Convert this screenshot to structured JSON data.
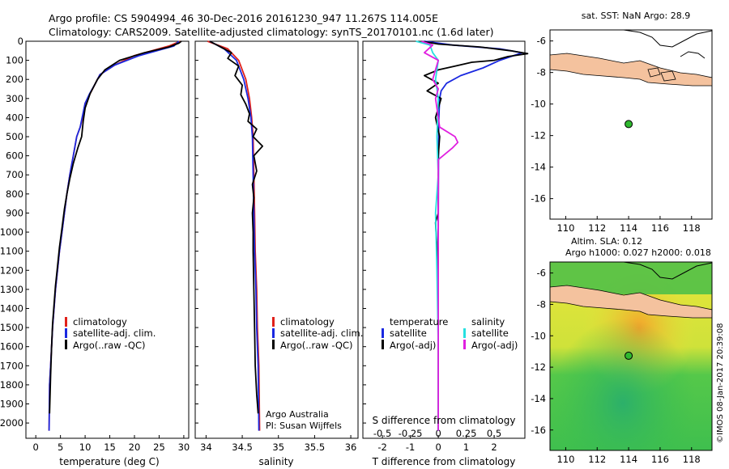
{
  "header": {
    "line1": "Argo profile: CS 5904994_46 30-Dec-2016 20161230_947 11.267S 114.005E",
    "line2": "Climatology: CARS2009. Satellite-adjusted climatology: synTS_20170101.nc (1.6d later)"
  },
  "colors": {
    "climatology": "#e0201a",
    "satellite": "#1a28e0",
    "argo": "#000000",
    "salinity_sat": "#27e0e0",
    "salinity_argo": "#e020e0",
    "land": "#f4c29e"
  },
  "depth_axis": {
    "ticks": [
      0,
      100,
      200,
      300,
      400,
      500,
      600,
      700,
      800,
      900,
      1000,
      1100,
      1200,
      1300,
      1400,
      1500,
      1600,
      1700,
      1800,
      1900,
      2000
    ],
    "range": [
      0,
      2080
    ]
  },
  "chart_data": [
    {
      "type": "line",
      "panel": "temperature",
      "xlabel": "temperature (deg C)",
      "ylabel": "",
      "xlim": [
        -2,
        31
      ],
      "ylim": [
        2080,
        0
      ],
      "xticks": [
        0,
        5,
        10,
        15,
        20,
        25,
        30
      ],
      "legend": [
        "climatology",
        "satellite-adj. clim.",
        "Argo(..raw -QC)"
      ],
      "series": [
        {
          "name": "climatology",
          "color": "#e0201a",
          "x": [
            29.3,
            27,
            20,
            16,
            13,
            12,
            11,
            10,
            9.5,
            9,
            8.3,
            7.6,
            6.9,
            6.3,
            5.8,
            5.3,
            4.8,
            4.4,
            4.0,
            3.7,
            3.4,
            3.2,
            3.0,
            2.8,
            2.7
          ],
          "y": [
            0,
            25,
            75,
            125,
            175,
            225,
            275,
            325,
            400,
            450,
            500,
            600,
            700,
            800,
            900,
            1000,
            1100,
            1200,
            1300,
            1400,
            1500,
            1600,
            1700,
            1800,
            2040
          ]
        },
        {
          "name": "satellite-adj. clim.",
          "color": "#1a28e0",
          "x": [
            29.0,
            28,
            21,
            16,
            13,
            12,
            10.9,
            10,
            9.4,
            9,
            8.3,
            7.6,
            6.9,
            6.3,
            5.8,
            5.3,
            4.8,
            4.4,
            4.0,
            3.7,
            3.4,
            3.2,
            3.0,
            2.8,
            2.7
          ],
          "y": [
            0,
            25,
            75,
            125,
            175,
            225,
            275,
            325,
            400,
            450,
            500,
            600,
            700,
            800,
            900,
            1000,
            1100,
            1200,
            1300,
            1400,
            1500,
            1600,
            1700,
            1800,
            2040
          ]
        },
        {
          "name": "Argo(..raw -QC)",
          "color": "#000000",
          "x": [
            29.5,
            29.0,
            27,
            22,
            17,
            14,
            12.5,
            11,
            10,
            9.6,
            9.3,
            8.5,
            7.6,
            6.9,
            6.3,
            5.8,
            5.3,
            4.8,
            4.4,
            4.0,
            3.7,
            3.4,
            3.2,
            3.0,
            2.8
          ],
          "y": [
            0,
            10,
            30,
            60,
            100,
            150,
            200,
            275,
            350,
            420,
            500,
            560,
            640,
            720,
            800,
            880,
            980,
            1080,
            1180,
            1280,
            1380,
            1480,
            1600,
            1750,
            1950
          ]
        }
      ]
    },
    {
      "type": "line",
      "panel": "salinity",
      "xlabel": "salinity",
      "ylabel": "",
      "xlim": [
        33.85,
        36.1
      ],
      "ylim": [
        2080,
        0
      ],
      "xticks": [
        34,
        34.5,
        35,
        35.5,
        36
      ],
      "legend": [
        "climatology",
        "satellite-adj. clim.",
        "Argo(..raw -QC)"
      ],
      "annotation": [
        "Argo Australia",
        "PI: Susan Wijffels"
      ],
      "series": [
        {
          "name": "climatology",
          "color": "#e0201a",
          "x": [
            34.02,
            34.3,
            34.45,
            34.55,
            34.6,
            34.63,
            34.65,
            34.66,
            34.67,
            34.68,
            34.7,
            34.71,
            34.73,
            34.74
          ],
          "y": [
            0,
            40,
            100,
            200,
            300,
            400,
            500,
            700,
            900,
            1100,
            1300,
            1500,
            1700,
            2040
          ]
        },
        {
          "name": "satellite-adj. clim.",
          "color": "#1a28e0",
          "x": [
            34.05,
            34.25,
            34.42,
            34.52,
            34.58,
            34.62,
            34.64,
            34.65,
            34.66,
            34.67,
            34.69,
            34.7,
            34.72,
            34.73
          ],
          "y": [
            0,
            40,
            100,
            200,
            300,
            400,
            500,
            700,
            900,
            1100,
            1300,
            1500,
            1700,
            2040
          ]
        },
        {
          "name": "Argo(..raw -QC)",
          "color": "#000000",
          "x": [
            34.05,
            34.2,
            34.35,
            34.3,
            34.45,
            34.4,
            34.5,
            34.48,
            34.55,
            34.6,
            34.58,
            34.7,
            34.65,
            34.78,
            34.66,
            34.7,
            34.64,
            34.66,
            34.64,
            34.65,
            34.65,
            34.66,
            34.67,
            34.68,
            34.7,
            34.72
          ],
          "y": [
            0,
            30,
            60,
            90,
            130,
            180,
            230,
            280,
            330,
            380,
            420,
            460,
            500,
            550,
            600,
            680,
            750,
            820,
            900,
            1000,
            1100,
            1300,
            1500,
            1700,
            1850,
            1950
          ]
        }
      ]
    },
    {
      "type": "line",
      "panel": "difference",
      "xlabel": "T difference from climatology",
      "xlabel_top": "S difference from climatology",
      "xlim": [
        -2.7,
        3.1
      ],
      "ylim": [
        2080,
        0
      ],
      "xticks": [
        -2,
        -1,
        0,
        1,
        2
      ],
      "xticks_top_labels": [
        "-0.5",
        "-0.25",
        "0",
        "0.25",
        "0.5"
      ],
      "xticks_top_values": [
        -2,
        -1,
        0,
        1,
        2
      ],
      "legend_temperature_title": "temperature",
      "legend_salinity_title": "salinity",
      "legend": [
        "satellite",
        "Argo(-adj)",
        "satellite",
        "Argo(-adj)"
      ],
      "series": [
        {
          "name": "T satellite",
          "color": "#1a28e0",
          "x": [
            -0.5,
            0.5,
            2.2,
            3.0,
            2.2,
            1.6,
            0.8,
            0.3,
            0.1,
            0.05,
            0.02,
            0.01,
            0.0,
            0.0,
            0.0
          ],
          "y": [
            0,
            20,
            40,
            60,
            100,
            140,
            180,
            220,
            260,
            300,
            400,
            600,
            1000,
            1500,
            2040
          ]
        },
        {
          "name": "T Argo(-adj)",
          "color": "#000000",
          "x": [
            -0.6,
            0.0,
            1.5,
            2.6,
            3.2,
            2.5,
            2.0,
            1.2,
            0.6,
            0.0,
            -0.5,
            0.0,
            -0.4,
            0.1,
            0.0,
            -0.1,
            0.05,
            0.0,
            0.0,
            0.0,
            -0.1,
            0.0,
            0.0
          ],
          "y": [
            0,
            15,
            30,
            50,
            65,
            80,
            100,
            110,
            130,
            150,
            180,
            220,
            260,
            300,
            350,
            400,
            500,
            600,
            800,
            900,
            950,
            1200,
            2040
          ]
        },
        {
          "name": "S satellite",
          "color": "#27e0e0",
          "x": [
            -0.8,
            -0.3,
            -0.2,
            0.0,
            -0.1,
            0.0,
            -0.05,
            0.0,
            -0.1,
            -0.05,
            0.0,
            0.0
          ],
          "y": [
            0,
            20,
            60,
            100,
            200,
            300,
            500,
            700,
            900,
            1200,
            1600,
            2040
          ]
        },
        {
          "name": "S Argo(-adj)",
          "color": "#e020e0",
          "x": [
            -0.6,
            -0.2,
            -0.5,
            0.0,
            -0.2,
            0.0,
            -0.1,
            0.0,
            0.05,
            0.6,
            0.7,
            0.5,
            0.0,
            0.0,
            0.0
          ],
          "y": [
            0,
            20,
            60,
            100,
            200,
            250,
            300,
            400,
            450,
            500,
            530,
            560,
            620,
            800,
            2040
          ]
        }
      ]
    }
  ],
  "map_sst": {
    "title": "sat. SST: NaN Argo: 28.9",
    "xticks": [
      "110",
      "112",
      "114",
      "116",
      "118"
    ],
    "yticks": [
      "-6",
      "-8",
      "-10",
      "-12",
      "-14",
      "-16"
    ],
    "xlim": [
      109,
      119.3
    ],
    "ylim": [
      -17.3,
      -5.3
    ],
    "argo_lon": 114.0,
    "argo_lat": -11.27,
    "argo_color": "#2fb82f"
  },
  "map_sla": {
    "title_line1": "Altim. SLA: 0.12",
    "title_line2": "Argo h1000: 0.027 h2000: 0.018",
    "xticks": [
      "110",
      "112",
      "114",
      "116",
      "118"
    ],
    "yticks": [
      "-6",
      "-8",
      "-10",
      "-12",
      "-14",
      "-16"
    ],
    "xlim": [
      109,
      119.3
    ],
    "ylim": [
      -17.3,
      -5.3
    ],
    "argo_lon": 114.0,
    "argo_lat": -11.27
  },
  "stamp": "©IMOS 08-Jan-2017 20:39:08"
}
